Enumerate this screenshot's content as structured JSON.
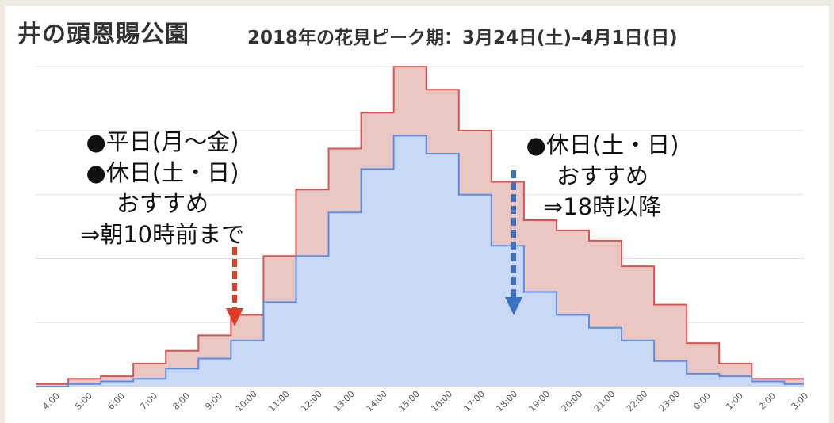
{
  "title": "井の頭恩賜公園",
  "subtitle": "2018年の花見ピーク期：3月24日(土)–4月1日(日)",
  "annotations": {
    "left": [
      "●平日(月〜金)",
      "●休日(土・日)",
      "おすすめ",
      "⇒朝10時前まで"
    ],
    "right": [
      "●休日(土・日)",
      "おすすめ",
      "⇒18時以降"
    ]
  },
  "colors": {
    "red_series": "#d9534f",
    "red_fill": "#ebc7c4",
    "blue_series": "#5b8ee6",
    "blue_fill": "#c8d8f5",
    "arrow_red": "#e23a26",
    "arrow_blue": "#3b73c4",
    "grid": "#e0e0e0"
  },
  "chart_data": {
    "type": "area",
    "step": true,
    "categories": [
      "4:00",
      "5:00",
      "6:00",
      "7:00",
      "8:00",
      "9:00",
      "10:00",
      "11:00",
      "12:00",
      "13:00",
      "14:00",
      "15:00",
      "16:00",
      "17:00",
      "18:00",
      "19:00",
      "20:00",
      "21:00",
      "22:00",
      "23:00",
      "0:00",
      "1:00",
      "2:00",
      "3:00"
    ],
    "series": [
      {
        "values": [
          1,
          3,
          4,
          9,
          14,
          20,
          28,
          51,
          77,
          93,
          107,
          125,
          116,
          100,
          80,
          65,
          61,
          57,
          47,
          32,
          17,
          9,
          3,
          3
        ]
      },
      {
        "values": [
          0,
          1,
          2,
          3,
          7,
          11,
          18,
          33,
          51,
          68,
          85,
          98,
          91,
          75,
          55,
          37,
          28,
          23,
          18,
          10,
          5,
          4,
          2,
          1
        ]
      }
    ],
    "ylim": [
      0,
      130
    ],
    "grid": true,
    "legend": "none"
  }
}
